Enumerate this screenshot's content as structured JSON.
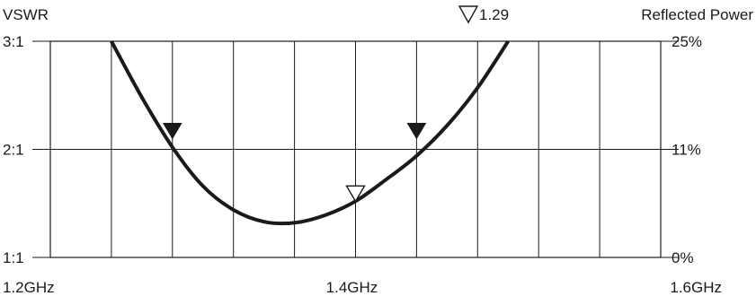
{
  "chart_data": {
    "type": "line",
    "left_axis_title": "VSWR",
    "right_axis_title": "Reflected Power",
    "marker_readout": "1.29",
    "x_ticks": [
      "1.2GHz",
      "1.4GHz",
      "1.6GHz"
    ],
    "left_ticks": [
      "3:1",
      "2:1",
      "1:1"
    ],
    "right_ticks": [
      "25%",
      "11%",
      "0%"
    ],
    "xlim": [
      1.2,
      1.6
    ],
    "ylim": [
      1.0,
      3.0
    ],
    "grid": true,
    "series": [
      {
        "x": [
          1.24,
          1.26,
          1.28,
          1.3,
          1.32,
          1.34,
          1.36,
          1.38,
          1.4,
          1.42,
          1.44,
          1.46,
          1.48,
          1.5
        ],
        "y": [
          3.0,
          2.48,
          2.02,
          1.66,
          1.44,
          1.33,
          1.32,
          1.39,
          1.52,
          1.72,
          1.94,
          2.22,
          2.57,
          3.0
        ]
      }
    ],
    "markers": [
      {
        "x": 1.28,
        "y": 2.1,
        "style": "filled"
      },
      {
        "x": 1.4,
        "y": 1.52,
        "style": "hollow"
      },
      {
        "x": 1.44,
        "y": 2.1,
        "style": "filled"
      }
    ]
  }
}
